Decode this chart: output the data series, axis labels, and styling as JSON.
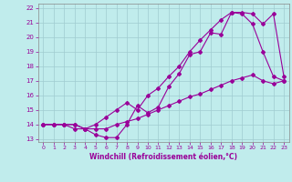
{
  "xlabel": "Windchill (Refroidissement éolien,°C)",
  "bg_color": "#c0ecec",
  "grid_color": "#a0ccd0",
  "line_color": "#990099",
  "xlim": [
    -0.5,
    23.5
  ],
  "ylim": [
    12.8,
    22.3
  ],
  "xticks": [
    0,
    1,
    2,
    3,
    4,
    5,
    6,
    7,
    8,
    9,
    10,
    11,
    12,
    13,
    14,
    15,
    16,
    17,
    18,
    19,
    20,
    21,
    22,
    23
  ],
  "yticks": [
    13,
    14,
    15,
    16,
    17,
    18,
    19,
    20,
    21,
    22
  ],
  "curve1_x": [
    0,
    1,
    2,
    3,
    4,
    5,
    6,
    7,
    8,
    9,
    10,
    11,
    12,
    13,
    14,
    15,
    16,
    17,
    18,
    19,
    20,
    21,
    22,
    23
  ],
  "curve1_y": [
    14.0,
    14.0,
    14.0,
    14.0,
    13.7,
    13.7,
    13.7,
    14.0,
    14.2,
    14.4,
    14.7,
    15.0,
    15.3,
    15.6,
    15.9,
    16.1,
    16.4,
    16.7,
    17.0,
    17.2,
    17.4,
    17.0,
    16.8,
    17.0
  ],
  "curve2_x": [
    0,
    1,
    2,
    3,
    4,
    5,
    6,
    7,
    8,
    9,
    10,
    11,
    12,
    13,
    14,
    15,
    16,
    17,
    18,
    19,
    20,
    21,
    22,
    23
  ],
  "curve2_y": [
    14.0,
    14.0,
    14.0,
    13.7,
    13.7,
    13.3,
    13.1,
    13.1,
    14.0,
    15.3,
    14.8,
    15.2,
    16.6,
    17.5,
    18.8,
    19.0,
    20.3,
    20.2,
    21.7,
    21.6,
    20.9,
    19.0,
    17.3,
    17.0
  ],
  "curve3_x": [
    0,
    1,
    2,
    3,
    4,
    5,
    6,
    7,
    8,
    9,
    10,
    11,
    12,
    13,
    14,
    15,
    16,
    17,
    18,
    19,
    20,
    21,
    22,
    23
  ],
  "curve3_y": [
    14.0,
    14.0,
    14.0,
    14.0,
    13.7,
    14.0,
    14.5,
    15.0,
    15.5,
    15.0,
    16.0,
    16.5,
    17.3,
    18.0,
    19.0,
    19.8,
    20.5,
    21.2,
    21.7,
    21.7,
    21.6,
    20.9,
    21.6,
    17.3
  ]
}
